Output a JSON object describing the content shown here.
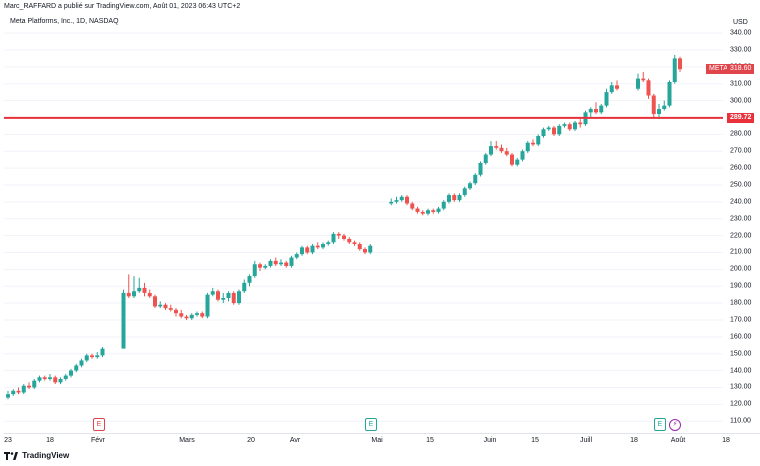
{
  "header": {
    "publish_line": "Marc_RAFFARD a publié sur TradingView.com, Août 01, 2023 06:43 UTC+2",
    "symbol_line": "Meta Platforms, Inc., 1D, NASDAQ",
    "currency": "USD"
  },
  "price_tags": {
    "symbol_label": "META",
    "last_price": "318.60",
    "level_price": "289.72"
  },
  "events": {
    "earnings_label": "E",
    "dividend_label": "⚡"
  },
  "footer": {
    "brand": "TradingView"
  },
  "colors": {
    "up": "#26a69a",
    "down": "#ef5350",
    "level": "#e8313a"
  },
  "chart_data": {
    "type": "candlestick",
    "y_unit": "USD",
    "ylim": [
      103,
      343
    ],
    "y_ticks": [
      110,
      120,
      130,
      140,
      150,
      160,
      170,
      180,
      190,
      200,
      210,
      220,
      230,
      240,
      250,
      260,
      270,
      280,
      290,
      300,
      310,
      320,
      330,
      340
    ],
    "x_tick_labels": [
      "23",
      "18",
      "Févr",
      "Mars",
      "20",
      "Avr",
      "Mai",
      "15",
      "Juin",
      "15",
      "Juill",
      "18",
      "Août",
      "18"
    ],
    "horizontal_level": 289.72,
    "last_price": 318.6,
    "candles": [
      [
        124,
        126,
        128,
        123
      ],
      [
        126,
        128,
        129,
        125
      ],
      [
        128,
        127,
        130,
        126
      ],
      [
        127,
        131,
        132,
        126
      ],
      [
        131,
        130,
        133,
        129
      ],
      [
        130,
        134,
        135,
        129
      ],
      [
        134,
        136,
        137,
        133
      ],
      [
        136,
        135,
        137,
        134
      ],
      [
        135,
        136,
        138,
        134
      ],
      [
        136,
        133,
        137,
        132
      ],
      [
        133,
        135,
        136,
        132
      ],
      [
        135,
        137,
        138,
        134
      ],
      [
        137,
        140,
        141,
        136
      ],
      [
        140,
        143,
        144,
        139
      ],
      [
        143,
        146,
        147,
        142
      ],
      [
        146,
        149,
        150,
        145
      ],
      [
        149,
        148,
        150,
        147
      ],
      [
        148,
        149,
        151,
        147
      ],
      [
        149,
        153,
        154,
        148
      ],
      [
        153,
        186,
        188,
        182
      ],
      [
        186,
        184,
        197,
        183
      ],
      [
        184,
        187,
        196,
        183
      ],
      [
        187,
        189,
        195,
        186
      ],
      [
        189,
        186,
        192,
        184
      ],
      [
        186,
        184,
        188,
        183
      ],
      [
        184,
        178,
        185,
        177
      ],
      [
        178,
        179,
        181,
        177
      ],
      [
        179,
        177,
        180,
        176
      ],
      [
        177,
        176,
        179,
        175
      ],
      [
        176,
        174,
        177,
        172
      ],
      [
        174,
        172,
        176,
        171
      ],
      [
        172,
        171,
        173,
        170
      ],
      [
        171,
        173,
        174,
        170
      ],
      [
        173,
        174,
        175,
        172
      ],
      [
        174,
        172,
        175,
        171
      ],
      [
        172,
        185,
        186,
        171
      ],
      [
        185,
        187,
        189,
        184
      ],
      [
        187,
        182,
        188,
        181
      ],
      [
        182,
        183,
        186,
        180
      ],
      [
        183,
        186,
        187,
        181
      ],
      [
        186,
        180,
        187,
        179
      ],
      [
        180,
        187,
        188,
        179
      ],
      [
        187,
        192,
        194,
        186
      ],
      [
        192,
        196,
        197,
        190
      ],
      [
        196,
        203,
        205,
        195
      ],
      [
        203,
        201,
        204,
        199
      ],
      [
        201,
        202,
        203,
        200
      ],
      [
        202,
        205,
        206,
        201
      ],
      [
        205,
        203,
        207,
        202
      ],
      [
        203,
        204,
        206,
        202
      ],
      [
        204,
        202,
        205,
        201
      ],
      [
        202,
        207,
        208,
        201
      ],
      [
        207,
        209,
        210,
        206
      ],
      [
        209,
        213,
        214,
        208
      ],
      [
        213,
        210,
        214,
        209
      ],
      [
        210,
        214,
        215,
        209
      ],
      [
        214,
        213,
        216,
        212
      ],
      [
        213,
        215,
        216,
        212
      ],
      [
        215,
        216,
        217,
        214
      ],
      [
        216,
        221,
        222,
        215
      ],
      [
        221,
        220,
        222,
        218
      ],
      [
        220,
        218,
        221,
        217
      ],
      [
        218,
        216,
        219,
        215
      ],
      [
        216,
        215,
        217,
        214
      ],
      [
        215,
        212,
        216,
        211
      ],
      [
        212,
        210,
        213,
        209
      ],
      [
        210,
        214,
        215,
        209
      ],
      [
        239,
        240,
        242,
        238
      ],
      [
        240,
        241,
        243,
        239
      ],
      [
        241,
        243,
        244,
        240
      ],
      [
        243,
        239,
        244,
        238
      ],
      [
        239,
        236,
        240,
        235
      ],
      [
        236,
        234,
        237,
        233
      ],
      [
        234,
        233,
        235,
        232
      ],
      [
        233,
        235,
        236,
        232
      ],
      [
        235,
        234,
        236,
        233
      ],
      [
        234,
        236,
        237,
        233
      ],
      [
        236,
        240,
        241,
        235
      ],
      [
        240,
        244,
        245,
        239
      ],
      [
        244,
        241,
        245,
        240
      ],
      [
        241,
        244,
        245,
        240
      ],
      [
        244,
        248,
        249,
        243
      ],
      [
        248,
        251,
        252,
        247
      ],
      [
        251,
        256,
        257,
        250
      ],
      [
        256,
        263,
        264,
        255
      ],
      [
        263,
        268,
        269,
        262
      ],
      [
        268,
        273,
        276,
        267
      ],
      [
        273,
        272,
        276,
        271
      ],
      [
        272,
        270,
        274,
        269
      ],
      [
        270,
        268,
        272,
        267
      ],
      [
        268,
        262,
        269,
        261
      ],
      [
        262,
        265,
        266,
        261
      ],
      [
        265,
        270,
        271,
        264
      ],
      [
        270,
        275,
        276,
        269
      ],
      [
        275,
        274,
        277,
        273
      ],
      [
        274,
        279,
        280,
        273
      ],
      [
        279,
        283,
        284,
        278
      ],
      [
        283,
        284,
        285,
        282
      ],
      [
        284,
        280,
        285,
        279
      ],
      [
        280,
        285,
        286,
        279
      ],
      [
        285,
        286,
        287,
        284
      ],
      [
        286,
        283,
        287,
        282
      ],
      [
        283,
        287,
        288,
        282
      ],
      [
        287,
        286,
        289,
        284
      ],
      [
        286,
        293,
        294,
        285
      ],
      [
        293,
        295,
        296,
        290
      ],
      [
        295,
        293,
        299,
        292
      ],
      [
        293,
        297,
        298,
        292
      ],
      [
        297,
        305,
        307,
        296
      ],
      [
        305,
        309,
        311,
        304
      ],
      [
        309,
        307,
        312,
        306
      ],
      [
        307,
        313,
        316,
        306
      ],
      [
        313,
        312,
        317,
        311
      ],
      [
        312,
        303,
        313,
        301
      ],
      [
        303,
        292,
        304,
        290
      ],
      [
        292,
        295,
        298,
        289
      ],
      [
        295,
        297,
        300,
        294
      ],
      [
        297,
        311,
        312,
        296
      ],
      [
        311,
        325,
        327,
        310
      ],
      [
        325,
        318.6,
        326,
        317
      ]
    ],
    "gap_after_index": [
      18,
      66,
      110
    ]
  }
}
